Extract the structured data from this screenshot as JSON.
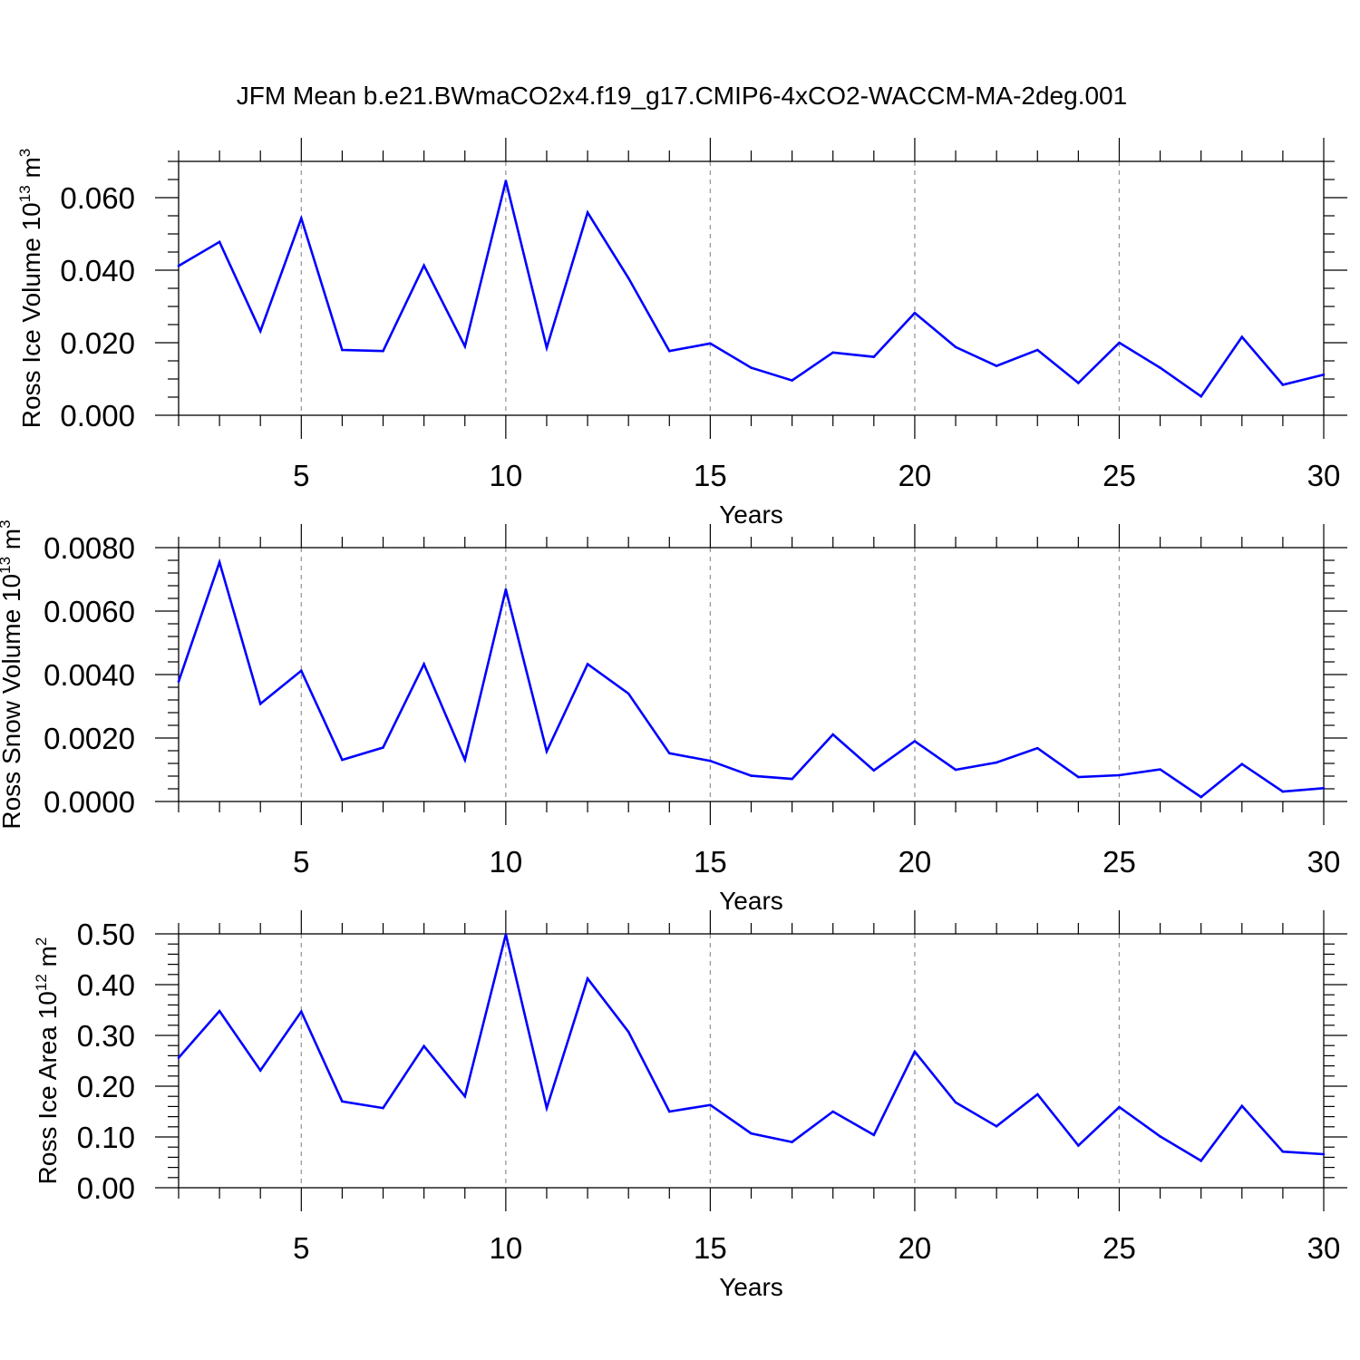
{
  "title": "JFM Mean b.e21.BWmaCO2x4.f19_g17.CMIP6-4xCO2-WACCM-MA-2deg.001",
  "colors": {
    "line": "#0000ff",
    "axes": "#000000",
    "grid": "#999999"
  },
  "chart_data": [
    {
      "type": "line",
      "ylabel": {
        "base": "Ross Ice Volume 10",
        "exp": "13",
        "unit": " m",
        "unit_exp": "3"
      },
      "xlabel": "Years",
      "xlim": [
        2,
        30
      ],
      "ylim": [
        0,
        0.07
      ],
      "xticks": [
        5,
        10,
        15,
        20,
        25,
        30
      ],
      "xtick_labels": [
        "5",
        "10",
        "15",
        "20",
        "25",
        "30"
      ],
      "yticks": [
        0,
        0.02,
        0.04,
        0.06
      ],
      "ytick_labels": [
        "0.000",
        "0.020",
        "0.040",
        "0.060"
      ],
      "grid": "vertical dashed at major x ticks",
      "x": [
        2,
        3,
        4,
        5,
        6,
        7,
        8,
        9,
        10,
        11,
        12,
        13,
        14,
        15,
        16,
        17,
        18,
        19,
        20,
        21,
        22,
        23,
        24,
        25,
        26,
        27,
        28,
        29,
        30
      ],
      "values": [
        0.0412,
        0.0478,
        0.0232,
        0.0543,
        0.018,
        0.0177,
        0.0413,
        0.019,
        0.0646,
        0.0186,
        0.0559,
        0.0378,
        0.0177,
        0.0198,
        0.0131,
        0.0096,
        0.0173,
        0.0161,
        0.0282,
        0.0188,
        0.0136,
        0.018,
        0.0089,
        0.02,
        0.0131,
        0.0052,
        0.0216,
        0.0084,
        0.0112
      ]
    },
    {
      "type": "line",
      "ylabel": {
        "base": "Ross Snow Volume 10",
        "exp": "13",
        "unit": " m",
        "unit_exp": "3"
      },
      "xlabel": "Years",
      "xlim": [
        2,
        30
      ],
      "ylim": [
        0,
        0.008
      ],
      "xticks": [
        5,
        10,
        15,
        20,
        25,
        30
      ],
      "xtick_labels": [
        "5",
        "10",
        "15",
        "20",
        "25",
        "30"
      ],
      "yticks": [
        0,
        0.002,
        0.004,
        0.006,
        0.008
      ],
      "ytick_labels": [
        "0.0000",
        "0.0020",
        "0.0040",
        "0.0060",
        "0.0080"
      ],
      "grid": "vertical dashed at major x ticks",
      "x": [
        2,
        3,
        4,
        5,
        6,
        7,
        8,
        9,
        10,
        11,
        12,
        13,
        14,
        15,
        16,
        17,
        18,
        19,
        20,
        21,
        22,
        23,
        24,
        25,
        26,
        27,
        28,
        29,
        30
      ],
      "values": [
        0.00378,
        0.00754,
        0.00308,
        0.00412,
        0.00131,
        0.0017,
        0.00433,
        0.00131,
        0.00668,
        0.00158,
        0.00433,
        0.0034,
        0.00152,
        0.00128,
        0.00081,
        0.00071,
        0.00211,
        0.00098,
        0.0019,
        0.001,
        0.00123,
        0.00168,
        0.00077,
        0.00083,
        0.00101,
        0.00014,
        0.00118,
        0.00031,
        0.00042
      ]
    },
    {
      "type": "line",
      "ylabel": {
        "base": "Ross Ice Area 10",
        "exp": "12",
        "unit": " m",
        "unit_exp": "2"
      },
      "xlabel": "Years",
      "xlim": [
        2,
        30
      ],
      "ylim": [
        0,
        0.5
      ],
      "xticks": [
        5,
        10,
        15,
        20,
        25,
        30
      ],
      "xtick_labels": [
        "5",
        "10",
        "15",
        "20",
        "25",
        "30"
      ],
      "yticks": [
        0,
        0.1,
        0.2,
        0.3,
        0.4,
        0.5
      ],
      "ytick_labels": [
        "0.00",
        "0.10",
        "0.20",
        "0.30",
        "0.40",
        "0.50"
      ],
      "grid": "vertical dashed at major x ticks",
      "x": [
        2,
        3,
        4,
        5,
        6,
        7,
        8,
        9,
        10,
        11,
        12,
        13,
        14,
        15,
        16,
        17,
        18,
        19,
        20,
        21,
        22,
        23,
        24,
        25,
        26,
        27,
        28,
        29,
        30
      ],
      "values": [
        0.256,
        0.348,
        0.231,
        0.347,
        0.17,
        0.157,
        0.279,
        0.18,
        0.499,
        0.157,
        0.412,
        0.307,
        0.15,
        0.163,
        0.107,
        0.09,
        0.15,
        0.104,
        0.268,
        0.168,
        0.121,
        0.184,
        0.083,
        0.159,
        0.101,
        0.053,
        0.161,
        0.071,
        0.066
      ]
    }
  ]
}
